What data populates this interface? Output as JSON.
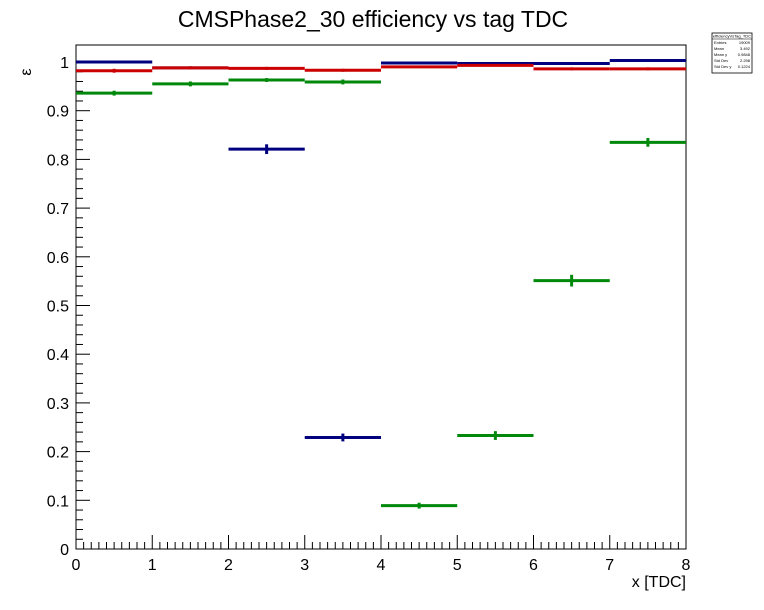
{
  "chart_data": {
    "type": "scatter",
    "title": "CMSPhase2_30 efficiency vs tag TDC",
    "xlabel": "x [TDC]",
    "ylabel": "ε",
    "xlim": [
      0,
      8
    ],
    "ylim": [
      0,
      1.0
    ],
    "grid": false,
    "x_ticks": [
      "0",
      "1",
      "2",
      "3",
      "4",
      "5",
      "6",
      "7",
      "8"
    ],
    "y_ticks": [
      "0",
      "0.1",
      "0.2",
      "0.3",
      "0.4",
      "0.5",
      "0.6",
      "0.7",
      "0.8",
      "0.9",
      "1"
    ],
    "bin_edges": [
      0,
      1,
      2,
      3,
      4,
      5,
      6,
      7,
      8
    ],
    "series": [
      {
        "color": "#00007f",
        "values": [
          1.0,
          0.988,
          0.821,
          0.229,
          0.998,
          0.997,
          0.997,
          1.003
        ],
        "errors": [
          0.002,
          0.003,
          0.01,
          0.008,
          0.002,
          0.002,
          0.002,
          0.002
        ]
      },
      {
        "color": "#cc0000",
        "values": [
          0.982,
          0.988,
          0.987,
          0.983,
          0.99,
          0.993,
          0.986,
          0.986
        ],
        "errors": [
          0.004,
          0.003,
          0.003,
          0.003,
          0.002,
          0.002,
          0.003,
          0.003
        ]
      },
      {
        "color": "#00880a",
        "values": [
          0.936,
          0.955,
          0.963,
          0.959,
          0.089,
          0.233,
          0.551,
          0.835
        ],
        "errors": [
          0.005,
          0.005,
          0.004,
          0.005,
          0.006,
          0.009,
          0.012,
          0.009
        ]
      }
    ],
    "stats_box": {
      "title": "efficiencyVsTag_TDC",
      "rows": [
        {
          "label": "Entries",
          "value": "19009"
        },
        {
          "label": "Mean",
          "value": "3.492"
        },
        {
          "label": "Mean y",
          "value": "0.9848"
        },
        {
          "label": "Std Dev",
          "value": "2.298"
        },
        {
          "label": "Std Dev y",
          "value": "0.1224"
        }
      ]
    }
  }
}
